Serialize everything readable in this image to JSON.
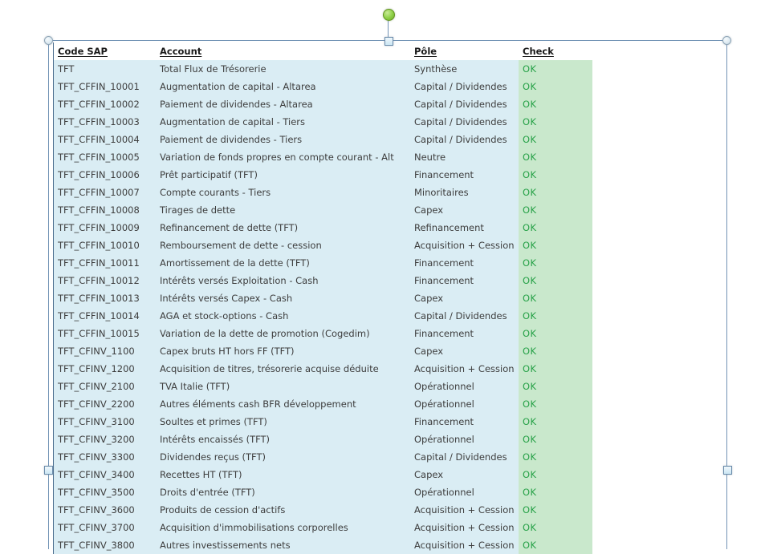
{
  "colors": {
    "row_fill": "#DAEDF4",
    "check_fill": "#C9E8CC",
    "check_text": "#26A147",
    "frame": "#7293B5",
    "rotation_handle_green": "#8CCF44"
  },
  "table": {
    "columns": [
      {
        "label": "Code SAP"
      },
      {
        "label": "Account"
      },
      {
        "label": "Pôle"
      },
      {
        "label": "Check"
      }
    ],
    "rows": [
      {
        "code": "TFT",
        "account": "Total Flux de Trésorerie",
        "pole": "Synthèse",
        "check": "OK"
      },
      {
        "code": "TFT_CFFIN_10001",
        "account": "Augmentation de capital - Altarea",
        "pole": "Capital / Dividendes",
        "check": "OK"
      },
      {
        "code": "TFT_CFFIN_10002",
        "account": "Paiement de dividendes - Altarea",
        "pole": "Capital / Dividendes",
        "check": "OK"
      },
      {
        "code": "TFT_CFFIN_10003",
        "account": "Augmentation de capital - Tiers",
        "pole": "Capital / Dividendes",
        "check": "OK"
      },
      {
        "code": "TFT_CFFIN_10004",
        "account": "Paiement de dividendes - Tiers",
        "pole": "Capital / Dividendes",
        "check": "OK"
      },
      {
        "code": "TFT_CFFIN_10005",
        "account": "Variation de fonds propres en compte courant - Alt",
        "pole": "Neutre",
        "check": "OK"
      },
      {
        "code": "TFT_CFFIN_10006",
        "account": "Prêt participatif (TFT)",
        "pole": "Financement",
        "check": "OK"
      },
      {
        "code": "TFT_CFFIN_10007",
        "account": "Compte courants - Tiers",
        "pole": "Minoritaires",
        "check": "OK"
      },
      {
        "code": "TFT_CFFIN_10008",
        "account": "Tirages de dette",
        "pole": "Capex",
        "check": "OK"
      },
      {
        "code": "TFT_CFFIN_10009",
        "account": "Refinancement de dette (TFT)",
        "pole": "Refinancement",
        "check": "OK"
      },
      {
        "code": "TFT_CFFIN_10010",
        "account": "Remboursement de dette - cession",
        "pole": "Acquisition + Cession",
        "check": "OK"
      },
      {
        "code": "TFT_CFFIN_10011",
        "account": "Amortissement de la dette (TFT)",
        "pole": "Financement",
        "check": "OK"
      },
      {
        "code": "TFT_CFFIN_10012",
        "account": "Intérêts versés Exploitation - Cash",
        "pole": "Financement",
        "check": "OK"
      },
      {
        "code": "TFT_CFFIN_10013",
        "account": "Intérêts versés Capex - Cash",
        "pole": "Capex",
        "check": "OK"
      },
      {
        "code": "TFT_CFFIN_10014",
        "account": "AGA et stock-options - Cash",
        "pole": "Capital / Dividendes",
        "check": "OK"
      },
      {
        "code": "TFT_CFFIN_10015",
        "account": "Variation de la dette de promotion (Cogedim)",
        "pole": "Financement",
        "check": "OK"
      },
      {
        "code": "TFT_CFINV_1100",
        "account": "Capex bruts HT hors FF (TFT)",
        "pole": "Capex",
        "check": "OK"
      },
      {
        "code": "TFT_CFINV_1200",
        "account": "Acquisition de titres, trésorerie acquise déduite",
        "pole": "Acquisition + Cession",
        "check": "OK"
      },
      {
        "code": "TFT_CFINV_2100",
        "account": "TVA Italie (TFT)",
        "pole": "Opérationnel",
        "check": "OK"
      },
      {
        "code": "TFT_CFINV_2200",
        "account": "Autres éléments cash BFR développement",
        "pole": "Opérationnel",
        "check": "OK"
      },
      {
        "code": "TFT_CFINV_3100",
        "account": "Soultes et primes (TFT)",
        "pole": "Financement",
        "check": "OK"
      },
      {
        "code": "TFT_CFINV_3200",
        "account": "Intérêts encaissés (TFT)",
        "pole": "Opérationnel",
        "check": "OK"
      },
      {
        "code": "TFT_CFINV_3300",
        "account": "Dividendes reçus (TFT)",
        "pole": "Capital / Dividendes",
        "check": "OK"
      },
      {
        "code": "TFT_CFINV_3400",
        "account": "Recettes HT (TFT)",
        "pole": "Capex",
        "check": "OK"
      },
      {
        "code": "TFT_CFINV_3500",
        "account": "Droits d'entrée (TFT)",
        "pole": "Opérationnel",
        "check": "OK"
      },
      {
        "code": "TFT_CFINV_3600",
        "account": "Produits de cession d'actifs",
        "pole": "Acquisition + Cession",
        "check": "OK"
      },
      {
        "code": "TFT_CFINV_3700",
        "account": "Acquisition d'immobilisations corporelles",
        "pole": "Acquisition + Cession",
        "check": "OK"
      },
      {
        "code": "TFT_CFINV_3800",
        "account": "Autres investissements nets",
        "pole": "Acquisition + Cession",
        "check": "OK"
      }
    ]
  }
}
